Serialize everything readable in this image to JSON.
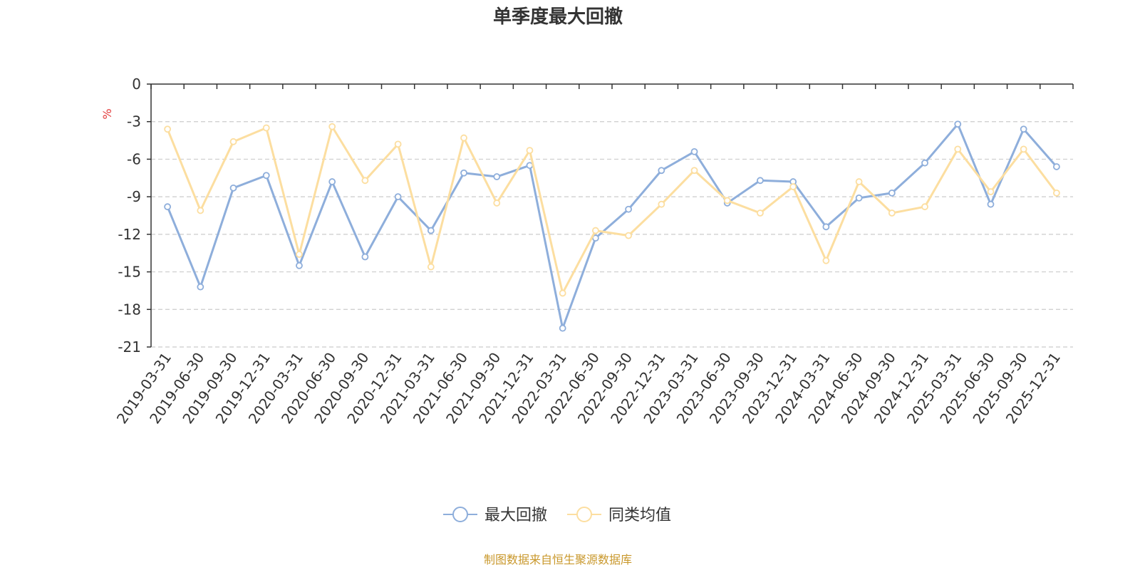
{
  "chart_data": {
    "type": "line",
    "title": "单季度最大回撤",
    "ylabel": "%",
    "ylim": [
      -21,
      0
    ],
    "yticks": [
      0,
      -3,
      -6,
      -9,
      -12,
      -15,
      -18,
      -21
    ],
    "grid": true,
    "legend_position": "bottom",
    "categories": [
      "2019-03-31",
      "2019-06-30",
      "2019-09-30",
      "2019-12-31",
      "2020-03-31",
      "2020-06-30",
      "2020-09-30",
      "2020-12-31",
      "2021-03-31",
      "2021-06-30",
      "2021-09-30",
      "2021-12-31",
      "2022-03-31",
      "2022-06-30",
      "2022-09-30",
      "2022-12-31",
      "2023-03-31",
      "2023-06-30",
      "2023-09-30",
      "2023-12-31",
      "2024-03-31",
      "2024-06-30",
      "2024-09-30",
      "2024-12-31",
      "2025-03-31",
      "2025-06-30",
      "2025-09-30",
      "2025-12-31"
    ],
    "series": [
      {
        "name": "最大回撤",
        "color": "#8eaedb",
        "values": [
          -9.8,
          -16.2,
          -8.3,
          -7.3,
          -14.5,
          -7.8,
          -13.8,
          -9.0,
          -11.7,
          -7.1,
          -7.4,
          -6.5,
          -19.5,
          -12.3,
          -10.0,
          -6.9,
          -5.4,
          -9.5,
          -7.7,
          -7.8,
          -11.4,
          -9.1,
          -8.7,
          -6.3,
          -3.2,
          -9.6,
          -3.6,
          -6.6
        ]
      },
      {
        "name": "同类均值",
        "color": "#fcdea0",
        "values": [
          -3.6,
          -10.1,
          -4.6,
          -3.5,
          -13.6,
          -3.4,
          -7.7,
          -4.8,
          -14.6,
          -4.3,
          -9.5,
          -5.3,
          -16.7,
          -11.7,
          -12.1,
          -9.6,
          -6.9,
          -9.3,
          -10.3,
          -8.2,
          -14.1,
          -7.8,
          -10.3,
          -9.8,
          -5.2,
          -8.6,
          -5.2,
          -8.7
        ]
      }
    ],
    "unit_color": "#e23b3b",
    "axis_color": "#333333",
    "grid_color": "#cccccc"
  },
  "source_text": "制图数据来自恒生聚源数据库",
  "source_color": "#c9982c"
}
